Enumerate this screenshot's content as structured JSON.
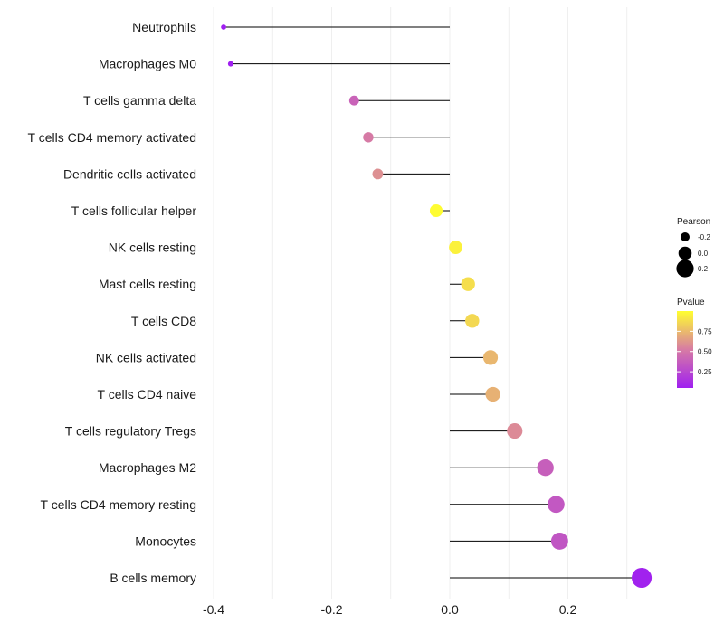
{
  "chart_data": {
    "type": "lollipop",
    "categories": [
      "Neutrophils",
      "Macrophages M0",
      "T cells gamma delta",
      "T cells CD4 memory activated",
      "Dendritic cells activated",
      "T cells follicular helper",
      "NK cells resting",
      "Mast cells resting",
      "T cells CD8",
      "NK cells activated",
      "T cells CD4 naive",
      "T cells regulatory  Tregs ",
      "Macrophages M2",
      "T cells CD4 memory resting",
      "Monocytes",
      "B cells memory"
    ],
    "pearson": [
      -0.383,
      -0.371,
      -0.162,
      -0.138,
      -0.122,
      -0.023,
      0.01,
      0.031,
      0.038,
      0.069,
      0.073,
      0.11,
      0.162,
      0.18,
      0.186,
      0.325
    ],
    "pvalue": [
      0.02,
      0.03,
      0.4,
      0.52,
      0.6,
      0.99,
      0.95,
      0.88,
      0.86,
      0.74,
      0.72,
      0.58,
      0.38,
      0.34,
      0.33,
      0.06
    ],
    "xlim": [
      -0.42,
      0.34
    ],
    "x_ticks": [
      -0.4,
      -0.2,
      0.0,
      0.2
    ],
    "x_tick_labels": [
      "-0.4",
      "-0.2",
      "0.0",
      "0.2"
    ],
    "legend_size": {
      "title": "Pearson",
      "values": [
        -0.2,
        0.0,
        0.2
      ],
      "labels": [
        "-0.2",
        "0.0",
        "0.2"
      ]
    },
    "legend_color": {
      "title": "Pvalue",
      "range": [
        0.05,
        1.0
      ],
      "breaks": [
        0.75,
        0.5,
        0.25
      ],
      "labels": [
        "0.75",
        "0.50",
        "0.25"
      ],
      "low_color": "#a020f0",
      "mid_color": "#d77ba4",
      "high_color": "#ffff30"
    },
    "gridlines": true,
    "segment_color": "#000000"
  }
}
